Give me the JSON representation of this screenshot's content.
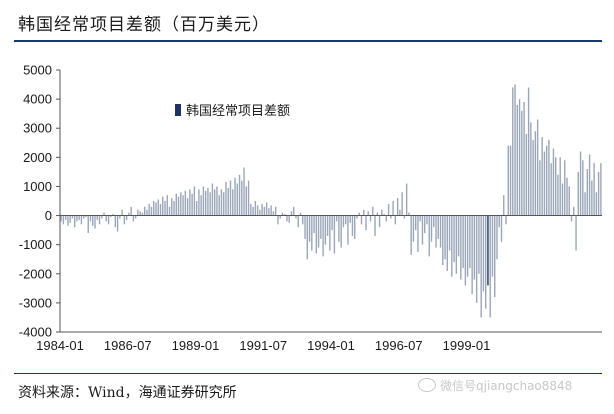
{
  "title": "韩国经常项目差额（百万美元）",
  "source": "资料来源：Wind，海通证券研究所",
  "watermark": "微信号qjiangchao8848",
  "colors": {
    "bar": "#9aa6b8",
    "bar_dark": "#1f3360",
    "axis": "#555555",
    "rule": "#1a3a6e"
  },
  "chart_data": {
    "type": "bar",
    "legend": {
      "label": "韩国经常项目差额",
      "position": "top-left"
    },
    "ylim": [
      -4000,
      5000
    ],
    "y_ticks": [
      -4000,
      -3000,
      -2000,
      -1000,
      0,
      1000,
      2000,
      3000,
      4000,
      5000
    ],
    "x_tick_labels": [
      "1984-01",
      "1986-07",
      "1989-01",
      "1991-07",
      "1994-01",
      "1996-07",
      "1999-01"
    ],
    "x_start": "1984-01",
    "series": [
      {
        "values": [
          -200,
          -300,
          -150,
          -350,
          -250,
          -100,
          -400,
          -200,
          -150,
          -300,
          -100,
          -50,
          -600,
          -200,
          -350,
          -450,
          -150,
          -300,
          -100,
          100,
          -200,
          -300,
          -50,
          50,
          -400,
          -550,
          -100,
          200,
          -300,
          -150,
          100,
          300,
          -200,
          -100,
          200,
          150,
          100,
          300,
          200,
          400,
          300,
          500,
          450,
          550,
          400,
          650,
          500,
          700,
          300,
          600,
          500,
          750,
          650,
          800,
          700,
          850,
          600,
          900,
          750,
          1000,
          500,
          900,
          700,
          1000,
          850,
          950,
          800,
          1100,
          900,
          1000,
          700,
          900,
          800,
          1150,
          950,
          1200,
          900,
          1300,
          1100,
          1400,
          1200,
          1650,
          1000,
          1200,
          400,
          300,
          500,
          350,
          200,
          400,
          300,
          450,
          250,
          350,
          150,
          300,
          -300,
          -100,
          100,
          50,
          -200,
          -250,
          150,
          300,
          -100,
          -400,
          100,
          -300,
          -800,
          -1500,
          -900,
          -1200,
          -600,
          -1300,
          -1100,
          -800,
          -1400,
          -1000,
          -700,
          -1200,
          -500,
          -1300,
          -200,
          -900,
          -1100,
          -400,
          -300,
          -1000,
          -250,
          -700,
          -800,
          -100,
          100,
          -300,
          200,
          -500,
          150,
          -200,
          300,
          -700,
          100,
          -400,
          200,
          50,
          -200,
          400,
          -100,
          500,
          -300,
          600,
          200,
          800,
          -100,
          1100,
          100,
          -1350,
          -900,
          -500,
          -1250,
          -200,
          -1000,
          -600,
          -300,
          -1400,
          -900,
          -400,
          -1100,
          -800,
          -1100,
          -1700,
          -1500,
          -1900,
          -1200,
          -2100,
          -1600,
          -2000,
          -1400,
          -2200,
          -1800,
          -2400,
          -2100,
          -1800,
          -2700,
          -2200,
          -3000,
          -2000,
          -3500,
          -2600,
          -3200,
          -2400,
          -3500,
          -2100,
          -2800,
          -1500,
          -400,
          -900,
          700,
          -300,
          2400,
          2400,
          4400,
          4500,
          3800,
          4000,
          3600,
          3900,
          2800,
          4400,
          3200,
          2600,
          2900,
          3300,
          1900,
          2700,
          2200,
          2400,
          2600,
          1800,
          2300,
          2000,
          1400,
          2000,
          1100,
          1900,
          1300,
          1000,
          -200,
          300,
          -1200,
          1500,
          2200,
          1900,
          800,
          1600,
          2100,
          1200,
          1800,
          800,
          1500,
          1800
        ]
      }
    ],
    "dark_index": 189
  }
}
